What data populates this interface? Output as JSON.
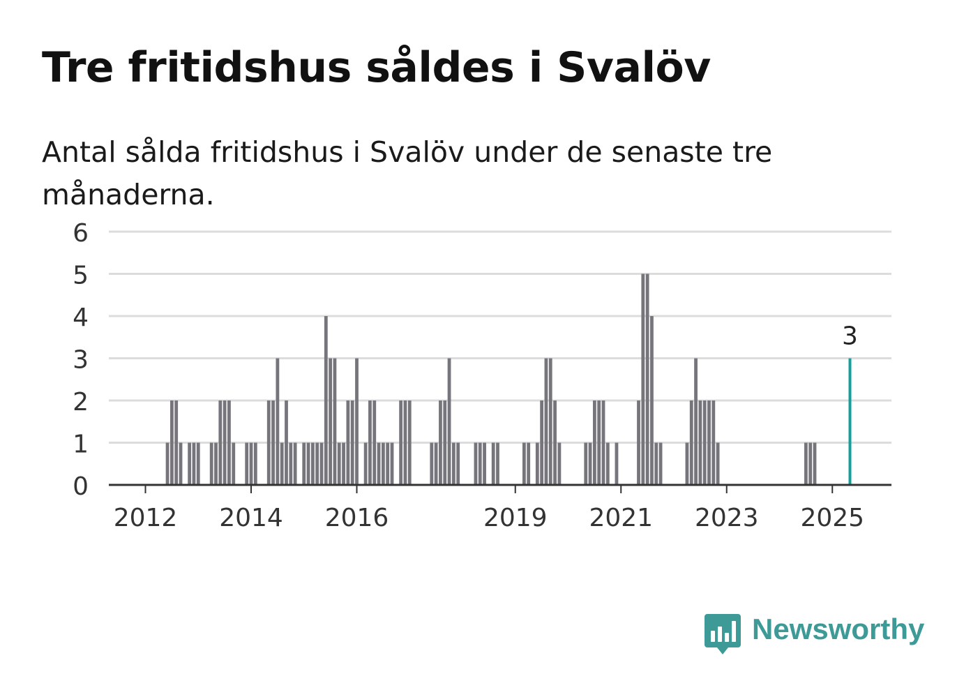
{
  "title": "Tre fritidshus såldes i Svalöv",
  "subtitle": "Antal sålda fritidshus i Svalöv under de senaste tre månaderna.",
  "brand": {
    "name": "Newsworthy",
    "color": "#3d9a96",
    "icon": "chart-bubble-logo-icon"
  },
  "colors": {
    "bar": "#76757b",
    "highlight": "#13a09c",
    "grid": "#dcdcdc",
    "axis": "#333333"
  },
  "chart_data": {
    "type": "bar",
    "title": "Tre fritidshus såldes i Svalöv",
    "subtitle": "Antal sålda fritidshus i Svalöv under de senaste tre månaderna.",
    "x_unit": "month",
    "y_ticks": [
      "0",
      "1",
      "2",
      "3",
      "4",
      "5",
      "6"
    ],
    "ylim": [
      0,
      6
    ],
    "x_ticks": [
      "2012",
      "2014",
      "2016",
      "2019",
      "2021",
      "2023",
      "2025"
    ],
    "x_tick_years": [
      2012,
      2014,
      2016,
      2019,
      2021,
      2023,
      2025
    ],
    "grid": true,
    "highlight": {
      "year": 2025,
      "month": 5,
      "value": 3,
      "label": "3"
    },
    "series": [
      {
        "values": [
          [
            "2012-06",
            1
          ],
          [
            "2012-07",
            2
          ],
          [
            "2012-08",
            2
          ],
          [
            "2012-09",
            1
          ],
          [
            "2012-11",
            1
          ],
          [
            "2012-12",
            1
          ],
          [
            "2013-01",
            1
          ],
          [
            "2013-04",
            1
          ],
          [
            "2013-05",
            1
          ],
          [
            "2013-06",
            2
          ],
          [
            "2013-07",
            2
          ],
          [
            "2013-08",
            2
          ],
          [
            "2013-09",
            1
          ],
          [
            "2013-12",
            1
          ],
          [
            "2014-01",
            1
          ],
          [
            "2014-02",
            1
          ],
          [
            "2014-05",
            2
          ],
          [
            "2014-06",
            2
          ],
          [
            "2014-07",
            3
          ],
          [
            "2014-08",
            1
          ],
          [
            "2014-09",
            2
          ],
          [
            "2014-10",
            1
          ],
          [
            "2014-11",
            1
          ],
          [
            "2015-01",
            1
          ],
          [
            "2015-02",
            1
          ],
          [
            "2015-03",
            1
          ],
          [
            "2015-04",
            1
          ],
          [
            "2015-05",
            1
          ],
          [
            "2015-06",
            4
          ],
          [
            "2015-07",
            3
          ],
          [
            "2015-08",
            3
          ],
          [
            "2015-09",
            1
          ],
          [
            "2015-10",
            1
          ],
          [
            "2015-11",
            2
          ],
          [
            "2015-12",
            2
          ],
          [
            "2016-01",
            3
          ],
          [
            "2016-03",
            1
          ],
          [
            "2016-04",
            2
          ],
          [
            "2016-05",
            2
          ],
          [
            "2016-06",
            1
          ],
          [
            "2016-07",
            1
          ],
          [
            "2016-08",
            1
          ],
          [
            "2016-09",
            1
          ],
          [
            "2016-11",
            2
          ],
          [
            "2016-12",
            2
          ],
          [
            "2017-01",
            2
          ],
          [
            "2017-06",
            1
          ],
          [
            "2017-07",
            1
          ],
          [
            "2017-08",
            2
          ],
          [
            "2017-09",
            2
          ],
          [
            "2017-10",
            3
          ],
          [
            "2017-11",
            1
          ],
          [
            "2017-12",
            1
          ],
          [
            "2018-04",
            1
          ],
          [
            "2018-05",
            1
          ],
          [
            "2018-06",
            1
          ],
          [
            "2018-08",
            1
          ],
          [
            "2018-09",
            1
          ],
          [
            "2019-03",
            1
          ],
          [
            "2019-04",
            1
          ],
          [
            "2019-06",
            1
          ],
          [
            "2019-07",
            2
          ],
          [
            "2019-08",
            3
          ],
          [
            "2019-09",
            3
          ],
          [
            "2019-10",
            2
          ],
          [
            "2019-11",
            1
          ],
          [
            "2020-05",
            1
          ],
          [
            "2020-06",
            1
          ],
          [
            "2020-07",
            2
          ],
          [
            "2020-08",
            2
          ],
          [
            "2020-09",
            2
          ],
          [
            "2020-10",
            1
          ],
          [
            "2020-12",
            1
          ],
          [
            "2021-05",
            2
          ],
          [
            "2021-06",
            5
          ],
          [
            "2021-07",
            5
          ],
          [
            "2021-08",
            4
          ],
          [
            "2021-09",
            1
          ],
          [
            "2021-10",
            1
          ],
          [
            "2022-04",
            1
          ],
          [
            "2022-05",
            2
          ],
          [
            "2022-06",
            3
          ],
          [
            "2022-07",
            2
          ],
          [
            "2022-08",
            2
          ],
          [
            "2022-09",
            2
          ],
          [
            "2022-10",
            2
          ],
          [
            "2022-11",
            1
          ],
          [
            "2024-07",
            1
          ],
          [
            "2024-08",
            1
          ],
          [
            "2024-09",
            1
          ],
          [
            "2025-05",
            3
          ]
        ]
      }
    ]
  }
}
